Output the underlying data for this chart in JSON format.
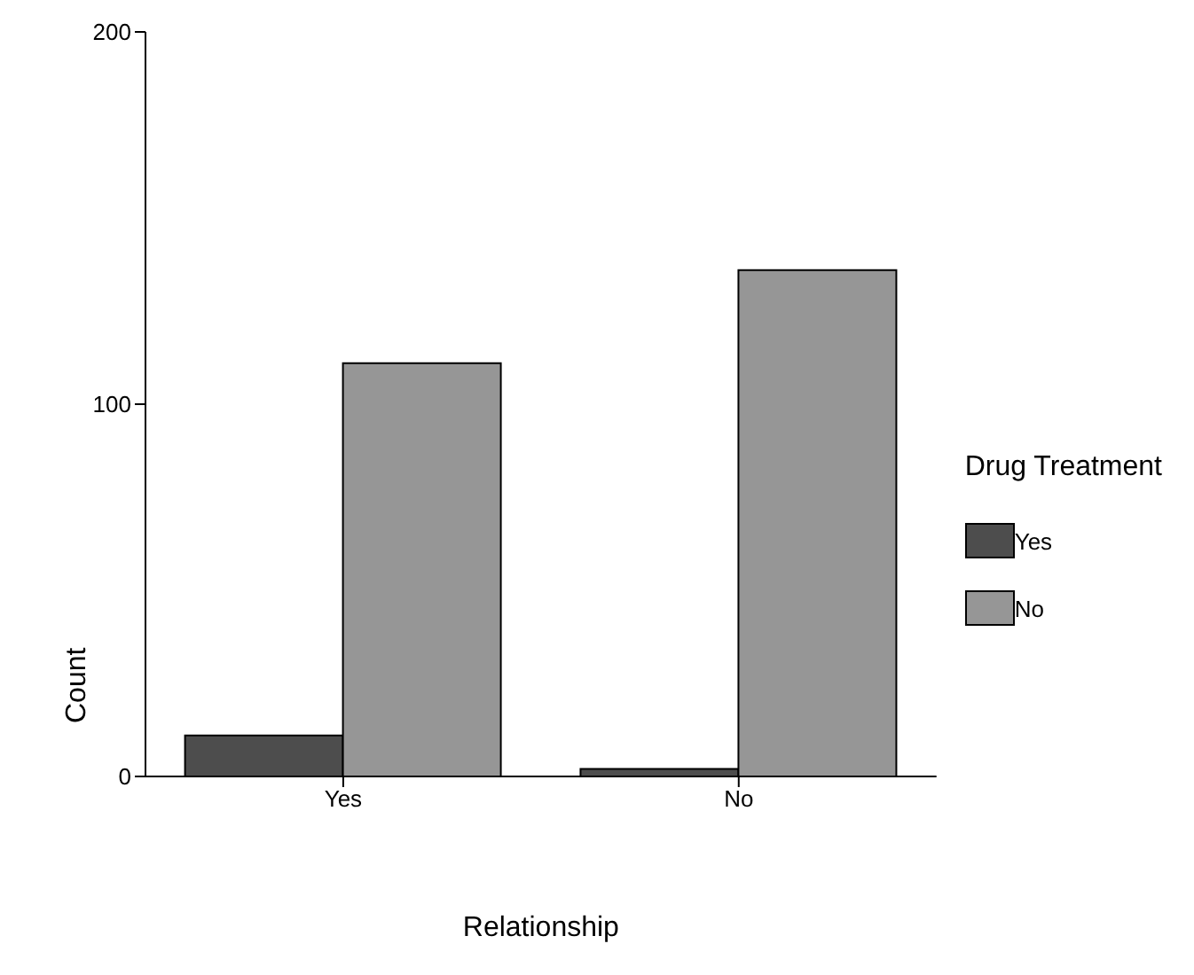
{
  "chart_data": {
    "type": "bar",
    "xlabel": "Relationship",
    "ylabel": "Count",
    "legend_title": "Drug Treatment",
    "categories": [
      "Yes",
      "No"
    ],
    "series": [
      {
        "name": "Yes",
        "color": "#4d4d4d",
        "values": [
          11,
          2
        ]
      },
      {
        "name": "No",
        "color": "#969696",
        "values": [
          111,
          136
        ]
      }
    ],
    "ylim": [
      0,
      200
    ],
    "yticks": [
      0,
      100,
      200
    ],
    "legend": "right",
    "grid": false
  }
}
